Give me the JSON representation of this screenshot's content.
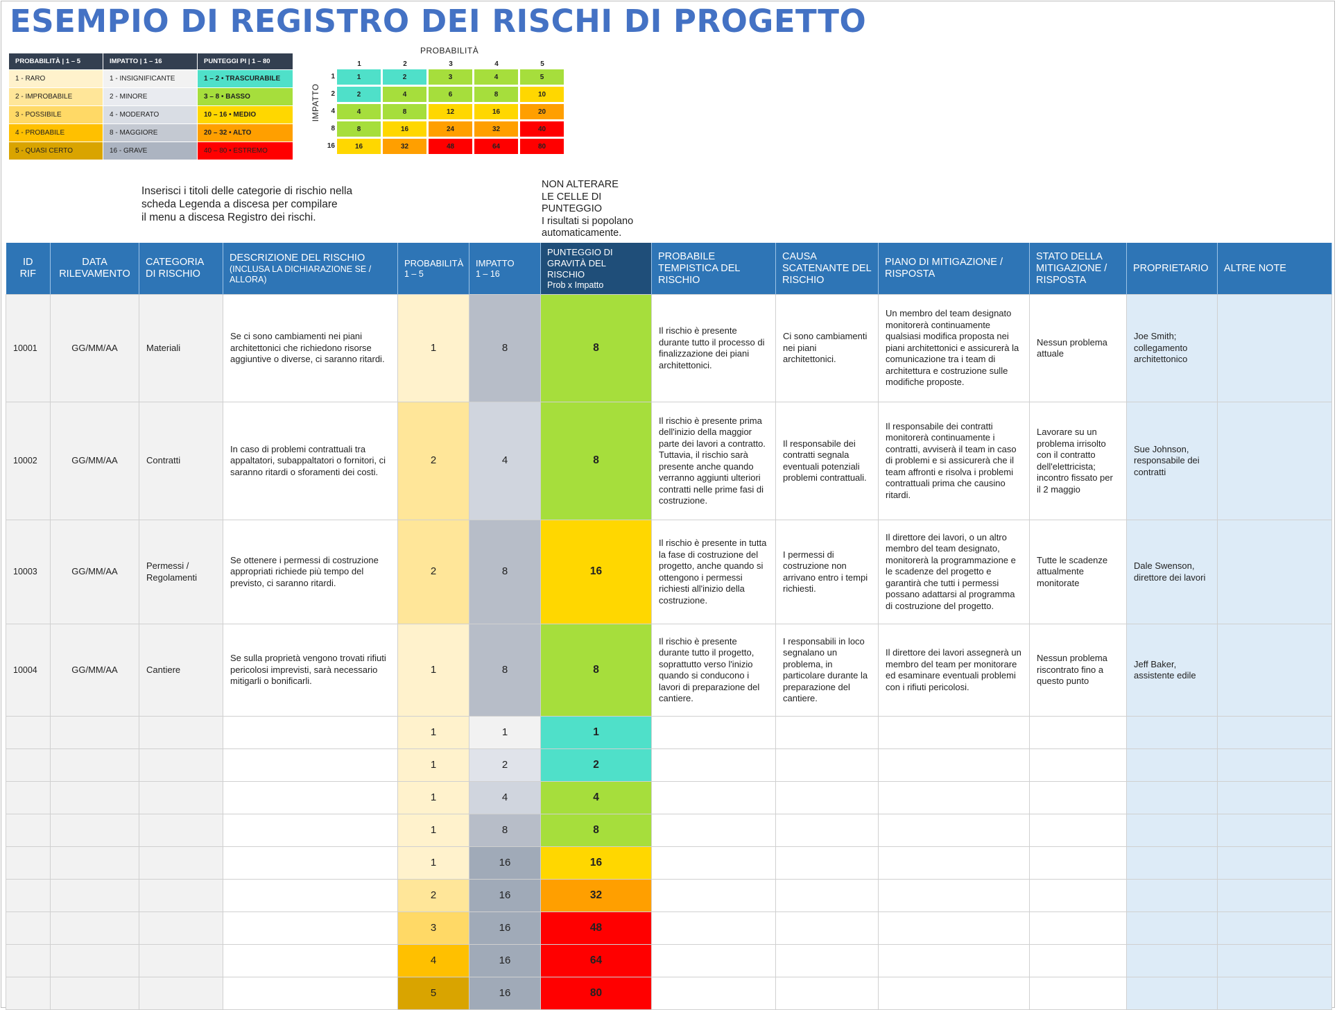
{
  "title": "ESEMPIO DI REGISTRO DEI RISCHI DI PROGETTO",
  "colors": {
    "trascurabile": "#4fe0c9",
    "basso": "#a6de3c",
    "medio": "#ffd700",
    "alto": "#ff9f00",
    "estremo": "#ff0000",
    "p1": "#fff2cc",
    "p2": "#ffe699",
    "p3": "#ffd966",
    "p4": "#ffc000",
    "p5": "#d9a400",
    "i1": "#f2f2f2",
    "i2": "#e0e3ea",
    "i4": "#d0d5de",
    "i8": "#b7bdc8",
    "i16": "#a0aab8"
  },
  "legend": {
    "headers": [
      "PROBABILITÀ | 1 – 5",
      "IMPATTO | 1 – 16",
      "PUNTEGGI PI | 1 – 80"
    ],
    "rows": [
      {
        "prob": "1 - RARO",
        "impact": "1 - INSIGNIFICANTE",
        "score": "1 – 2 • TRASCURABILE"
      },
      {
        "prob": "2 - IMPROBABILE",
        "impact": "2 - MINORE",
        "score": "3 – 8 • BASSO"
      },
      {
        "prob": "3 - POSSIBILE",
        "impact": "4 - MODERATO",
        "score": "10 – 16 • MEDIO"
      },
      {
        "prob": "4 - PROBABILE",
        "impact": "8 - MAGGIORE",
        "score": "20 – 32 • ALTO"
      },
      {
        "prob": "5 - QUASI CERTO",
        "impact": "16 - GRAVE",
        "score": "40 – 80 • ESTREMO"
      }
    ]
  },
  "matrix": {
    "x_title": "PROBABILITÀ",
    "y_title": "IMPATTO",
    "cols": [
      "1",
      "2",
      "3",
      "4",
      "5"
    ],
    "rows": [
      {
        "label": "1",
        "values": [
          "1",
          "2",
          "3",
          "4",
          "5"
        ]
      },
      {
        "label": "2",
        "values": [
          "2",
          "4",
          "6",
          "8",
          "10"
        ]
      },
      {
        "label": "4",
        "values": [
          "4",
          "8",
          "12",
          "16",
          "20"
        ]
      },
      {
        "label": "8",
        "values": [
          "8",
          "16",
          "24",
          "32",
          "40"
        ]
      },
      {
        "label": "16",
        "values": [
          "16",
          "32",
          "48",
          "64",
          "80"
        ]
      }
    ]
  },
  "notes": {
    "instructions": [
      "Inserisci i titoli delle categorie di rischio nella",
      "scheda Legenda a discesa per compilare",
      "il menu a discesa Registro dei rischi."
    ],
    "warning": [
      "NON ALTERARE",
      "LE CELLE DI",
      "PUNTEGGIO",
      "I risultati si popolano",
      "automaticamente."
    ]
  },
  "table": {
    "headers": {
      "id": [
        "ID",
        "RIF"
      ],
      "date": [
        "DATA",
        "RILEVAMENTO"
      ],
      "category": [
        "CATEGORIA",
        "DI RISCHIO"
      ],
      "description": "DESCRIZIONE DEL RISCHIO",
      "description_sub": "(INCLUSA LA DICHIARAZIONE SE / ALLORA)",
      "probability": "PROBABILITÀ",
      "probability_sub": "1 – 5",
      "impact": "IMPATTO",
      "impact_sub": "1 – 16",
      "score": "PUNTEGGIO DI GRAVITÀ DEL RISCHIO",
      "score_sub": "Prob x Impatto",
      "timing": "PROBABILE TEMPISTICA DEL RISCHIO",
      "cause": "CAUSA SCATENANTE DEL RISCHIO",
      "plan": "PIANO DI MITIGAZIONE / RISPOSTA",
      "status": "STATO DELLA MITIGAZIONE / RISPOSTA",
      "owner": "PROPRIETARIO",
      "notes": "ALTRE NOTE"
    },
    "rows": [
      {
        "id": "10001",
        "date": "GG/MM/AA",
        "category": "Materiali",
        "description": "Se ci sono cambiamenti nei piani architettonici che richiedono risorse aggiuntive o diverse, ci saranno ritardi.",
        "prob": "1",
        "impact": "8",
        "score": "8",
        "timing": "Il rischio è presente durante tutto il processo di finalizzazione dei piani architettonici.",
        "cause": "Ci sono cambiamenti nei piani architettonici.",
        "plan": "Un membro del team designato monitorerà continuamente qualsiasi modifica proposta nei piani architettonici e assicurerà la comunicazione tra i team di architettura e costruzione sulle modifiche proposte.",
        "status": "Nessun problema attuale",
        "owner": "Joe Smith; collegamento architettonico",
        "notes": ""
      },
      {
        "id": "10002",
        "date": "GG/MM/AA",
        "category": "Contratti",
        "description": "In caso di problemi contrattuali tra appaltatori, subappaltatori o fornitori, ci saranno ritardi o sforamenti dei costi.",
        "prob": "2",
        "impact": "4",
        "score": "8",
        "timing": "Il rischio è presente prima dell'inizio della maggior parte dei lavori a contratto. Tuttavia, il rischio sarà presente anche quando verranno aggiunti ulteriori contratti nelle prime fasi di costruzione.",
        "cause": "Il responsabile dei contratti segnala eventuali potenziali problemi contrattuali.",
        "plan": "Il responsabile dei contratti monitorerà continuamente i contratti, avviserà il team in caso di problemi e si assicurerà che il team affronti e risolva i problemi contrattuali prima che causino ritardi.",
        "status": "Lavorare su un problema irrisolto con il contratto dell'elettricista; incontro fissato per il 2 maggio",
        "owner": "Sue Johnson, responsabile dei contratti",
        "notes": ""
      },
      {
        "id": "10003",
        "date": "GG/MM/AA",
        "category": "Permessi / Regolamenti",
        "description": "Se ottenere i permessi di costruzione appropriati richiede più tempo del previsto, ci saranno ritardi.",
        "prob": "2",
        "impact": "8",
        "score": "16",
        "timing": "Il rischio è presente in tutta la fase di costruzione del progetto, anche quando si ottengono i permessi richiesti all'inizio della costruzione.",
        "cause": "I permessi di costruzione non arrivano entro i tempi richiesti.",
        "plan": "Il direttore dei lavori, o un altro membro del team designato, monitorerà la programmazione e le scadenze del progetto e garantirà che tutti i permessi possano adattarsi al programma di costruzione del progetto.",
        "status": "Tutte le scadenze attualmente monitorate",
        "owner": "Dale Swenson, direttore dei lavori",
        "notes": ""
      },
      {
        "id": "10004",
        "date": "GG/MM/AA",
        "category": "Cantiere",
        "description": "Se sulla proprietà vengono trovati rifiuti pericolosi imprevisti, sarà necessario mitigarli o bonificarli.",
        "prob": "1",
        "impact": "8",
        "score": "8",
        "timing": "Il rischio è presente durante tutto il progetto, soprattutto verso l'inizio quando si conducono i lavori di preparazione del cantiere.",
        "cause": "I responsabili in loco segnalano un problema, in particolare durante la preparazione del cantiere.",
        "plan": "Il direttore dei lavori assegnerà un membro del team per monitorare ed esaminare eventuali problemi con i rifiuti pericolosi.",
        "status": "Nessun problema riscontrato fino a questo punto",
        "owner": "Jeff Baker, assistente edile",
        "notes": ""
      },
      {
        "id": "",
        "date": "",
        "category": "",
        "description": "",
        "prob": "1",
        "impact": "1",
        "score": "1",
        "timing": "",
        "cause": "",
        "plan": "",
        "status": "",
        "owner": "",
        "notes": ""
      },
      {
        "id": "",
        "date": "",
        "category": "",
        "description": "",
        "prob": "1",
        "impact": "2",
        "score": "2",
        "timing": "",
        "cause": "",
        "plan": "",
        "status": "",
        "owner": "",
        "notes": ""
      },
      {
        "id": "",
        "date": "",
        "category": "",
        "description": "",
        "prob": "1",
        "impact": "4",
        "score": "4",
        "timing": "",
        "cause": "",
        "plan": "",
        "status": "",
        "owner": "",
        "notes": ""
      },
      {
        "id": "",
        "date": "",
        "category": "",
        "description": "",
        "prob": "1",
        "impact": "8",
        "score": "8",
        "timing": "",
        "cause": "",
        "plan": "",
        "status": "",
        "owner": "",
        "notes": ""
      },
      {
        "id": "",
        "date": "",
        "category": "",
        "description": "",
        "prob": "1",
        "impact": "16",
        "score": "16",
        "timing": "",
        "cause": "",
        "plan": "",
        "status": "",
        "owner": "",
        "notes": ""
      },
      {
        "id": "",
        "date": "",
        "category": "",
        "description": "",
        "prob": "2",
        "impact": "16",
        "score": "32",
        "timing": "",
        "cause": "",
        "plan": "",
        "status": "",
        "owner": "",
        "notes": ""
      },
      {
        "id": "",
        "date": "",
        "category": "",
        "description": "",
        "prob": "3",
        "impact": "16",
        "score": "48",
        "timing": "",
        "cause": "",
        "plan": "",
        "status": "",
        "owner": "",
        "notes": ""
      },
      {
        "id": "",
        "date": "",
        "category": "",
        "description": "",
        "prob": "4",
        "impact": "16",
        "score": "64",
        "timing": "",
        "cause": "",
        "plan": "",
        "status": "",
        "owner": "",
        "notes": ""
      },
      {
        "id": "",
        "date": "",
        "category": "",
        "description": "",
        "prob": "5",
        "impact": "16",
        "score": "80",
        "timing": "",
        "cause": "",
        "plan": "",
        "status": "",
        "owner": "",
        "notes": ""
      }
    ]
  }
}
